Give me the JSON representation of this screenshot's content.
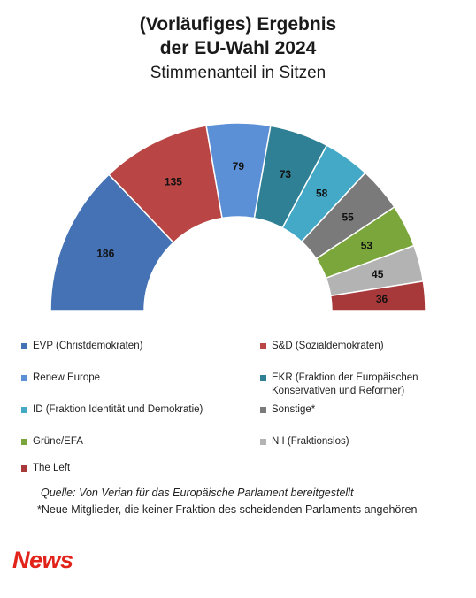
{
  "title_lines": [
    "(Vorläufiges) Ergebnis",
    "der EU-Wahl 2024"
  ],
  "subtitle": "Stimmenanteil in Sitzen",
  "chart_data": {
    "type": "pie",
    "variant": "half-donut (parliament)",
    "title": "(Vorläufiges) Ergebnis der EU-Wahl 2024",
    "subtitle": "Stimmenanteil in Sitzen",
    "legend_position": "bottom",
    "series": [
      {
        "name": "EVP (Christdemokraten)",
        "value": 186,
        "color": "#4472b4"
      },
      {
        "name": "S&D (Sozialdemokraten)",
        "value": 135,
        "color": "#b94544"
      },
      {
        "name": "Renew  Europe",
        "value": 79,
        "color": "#5b8fd6"
      },
      {
        "name": "EKR (Fraktion der Europäischen Konservativen und Reformer)",
        "value": 73,
        "color": "#2f8094"
      },
      {
        "name": "ID (Fraktion Identität und Demokratie)",
        "value": 58,
        "color": "#44a9c7"
      },
      {
        "name": "Sonstige*",
        "value": 55,
        "color": "#7a7a7a"
      },
      {
        "name": "Grüne/EFA",
        "value": 53,
        "color": "#7aa63c"
      },
      {
        "name": "N I (Fraktionslos)",
        "value": 45,
        "color": "#b3b3b3"
      },
      {
        "name": "The Left",
        "value": 36,
        "color": "#a8393a"
      }
    ]
  },
  "legend_items": [
    {
      "label": "EVP (Christdemokraten)",
      "color": "#4472b4"
    },
    {
      "label": "S&D (Sozialdemokraten)",
      "color": "#b94544"
    },
    {
      "label": "Renew  Europe",
      "color": "#5b8fd6"
    },
    {
      "label": "EKR (Fraktion der Europäischen",
      "label2": "Konservativen und Reformer)",
      "color": "#2f8094"
    },
    {
      "label": "ID (Fraktion Identität und Demokratie)",
      "color": "#44a9c7"
    },
    {
      "label": "Sonstige*",
      "color": "#7a7a7a"
    },
    {
      "label": "Grüne/EFA",
      "color": "#7aa63c"
    },
    {
      "label": "N I (Fraktionslos)",
      "color": "#b3b3b3"
    },
    {
      "label": "The Left",
      "color": "#a8393a"
    }
  ],
  "source": "Quelle: Von Verian für das Europäische Parlament bereitgestellt",
  "note": "*Neue Mitglieder, die keiner Fraktion des scheidenden Parlaments angehören",
  "logo_text": "News"
}
